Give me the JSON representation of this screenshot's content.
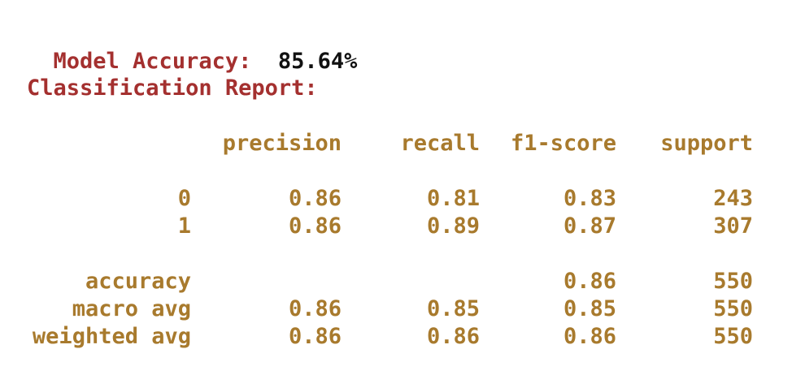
{
  "header": {
    "accuracy_label": "Model Accuracy:",
    "accuracy_value": "85.64%",
    "report_label": "Classification Report:"
  },
  "report": {
    "columns": [
      "precision",
      "recall",
      "f1-score",
      "support"
    ],
    "rows": [
      {
        "label": "0",
        "precision": "0.86",
        "recall": "0.81",
        "f1": "0.83",
        "support": "243"
      },
      {
        "label": "1",
        "precision": "0.86",
        "recall": "0.89",
        "f1": "0.87",
        "support": "307"
      },
      {
        "label": "accuracy",
        "precision": "",
        "recall": "",
        "f1": "0.86",
        "support": "550"
      },
      {
        "label": "macro avg",
        "precision": "0.86",
        "recall": "0.85",
        "f1": "0.85",
        "support": "550"
      },
      {
        "label": "weighted avg",
        "precision": "0.86",
        "recall": "0.86",
        "f1": "0.86",
        "support": "550"
      }
    ]
  },
  "colors": {
    "label": "#a4302f",
    "value": "#111111",
    "report_text": "#a87a2d"
  }
}
